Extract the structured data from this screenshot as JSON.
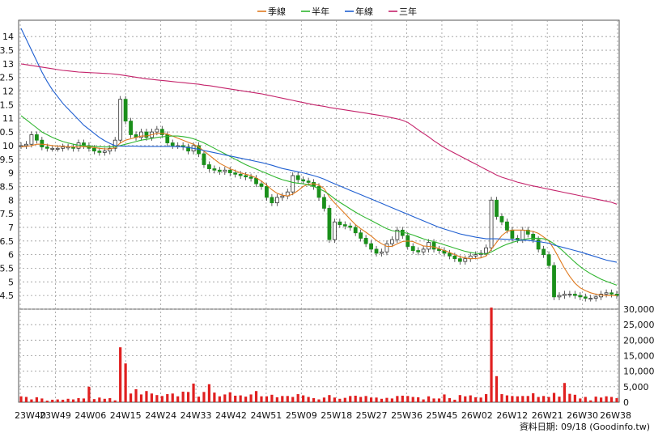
{
  "chart_data": {
    "type": "line",
    "source_note": "資料日期: 09/18 (Goodinfo.tw)",
    "legend": {
      "placement": "top-center",
      "items": [
        {
          "name": "季線",
          "color": "#e07a1f"
        },
        {
          "name": "半年",
          "color": "#2fb52f"
        },
        {
          "name": "年線",
          "color": "#1f5fd1"
        },
        {
          "name": "三年",
          "color": "#c4226a"
        }
      ]
    },
    "x_ticks": [
      "23W40",
      "23W49",
      "24W06",
      "24W15",
      "24W24",
      "24W33",
      "24W42",
      "24W51",
      "25W09",
      "25W18",
      "25W27",
      "25W36",
      "25W45",
      "26W02",
      "26W12",
      "26W21",
      "26W30",
      "26W38"
    ],
    "price_axis": {
      "ylim": [
        4.0,
        14.6
      ],
      "ticks": [
        4.5,
        5,
        5.5,
        6,
        6.5,
        7,
        7.5,
        8,
        8.5,
        9,
        9.5,
        10,
        10.5,
        11,
        11.5,
        12,
        12.5,
        13,
        13.5,
        14
      ],
      "tick_labels": [
        "4.5",
        "5",
        "5.5",
        "6",
        "6.5",
        "7",
        "7.5",
        "8",
        "8.5",
        "9",
        "9.5",
        "10",
        "10.5",
        "11",
        "11.5",
        "12",
        "12.5",
        "13",
        "13.5",
        "14"
      ]
    },
    "volume_axis": {
      "ylim": [
        0,
        30000
      ],
      "ticks": [
        0,
        5000,
        10000,
        15000,
        20000,
        25000,
        30000
      ],
      "tick_labels": [
        "0",
        "5,000",
        "10,000",
        "15,000",
        "20,000",
        "25,000",
        "30,000"
      ]
    },
    "grid": true,
    "close": [
      10.0,
      10.05,
      10.4,
      10.2,
      9.95,
      9.9,
      9.9,
      9.9,
      9.95,
      9.95,
      9.9,
      10.1,
      10.0,
      9.9,
      9.8,
      9.75,
      9.8,
      9.9,
      10.2,
      11.7,
      10.9,
      10.4,
      10.3,
      10.5,
      10.3,
      10.5,
      10.6,
      10.4,
      10.1,
      10.0,
      10.0,
      9.95,
      9.8,
      10.0,
      9.7,
      9.3,
      9.15,
      9.1,
      9.05,
      9.1,
      9.0,
      8.95,
      8.9,
      8.85,
      8.8,
      8.6,
      8.5,
      8.1,
      7.9,
      8.1,
      8.15,
      8.3,
      8.9,
      8.75,
      8.7,
      8.65,
      8.5,
      8.1,
      7.7,
      6.55,
      7.2,
      7.1,
      7.05,
      7.0,
      6.8,
      6.6,
      6.4,
      6.2,
      6.05,
      6.1,
      6.4,
      6.55,
      6.9,
      6.7,
      6.3,
      6.15,
      6.1,
      6.2,
      6.45,
      6.2,
      6.15,
      6.05,
      5.95,
      5.85,
      5.75,
      5.85,
      5.95,
      6.0,
      6.05,
      6.25,
      8.0,
      7.4,
      7.2,
      6.9,
      6.6,
      6.55,
      6.9,
      6.75,
      6.55,
      6.2,
      6.0,
      5.6,
      4.45,
      4.5,
      4.55,
      4.55,
      4.5,
      4.45,
      4.4,
      4.4,
      4.45,
      4.55,
      4.6,
      4.55,
      4.5
    ],
    "ma_quarter": [
      9.95,
      9.97,
      10.0,
      10.05,
      10.05,
      10.03,
      10.0,
      9.98,
      9.97,
      9.96,
      9.95,
      9.95,
      9.96,
      9.95,
      9.93,
      9.9,
      9.88,
      9.88,
      9.92,
      10.1,
      10.2,
      10.25,
      10.3,
      10.35,
      10.35,
      10.4,
      10.45,
      10.45,
      10.42,
      10.35,
      10.27,
      10.2,
      10.12,
      10.05,
      9.95,
      9.8,
      9.65,
      9.5,
      9.35,
      9.25,
      9.15,
      9.08,
      9.0,
      8.95,
      8.9,
      8.82,
      8.7,
      8.55,
      8.38,
      8.25,
      8.18,
      8.15,
      8.22,
      8.35,
      8.5,
      8.58,
      8.6,
      8.55,
      8.42,
      8.12,
      7.9,
      7.7,
      7.5,
      7.3,
      7.1,
      6.95,
      6.82,
      6.68,
      6.52,
      6.4,
      6.3,
      6.3,
      6.4,
      6.48,
      6.5,
      6.48,
      6.4,
      6.32,
      6.3,
      6.28,
      6.22,
      6.15,
      6.08,
      6.0,
      5.92,
      5.88,
      5.85,
      5.86,
      5.88,
      5.95,
      6.2,
      6.45,
      6.7,
      6.85,
      6.9,
      6.9,
      6.9,
      6.88,
      6.85,
      6.78,
      6.65,
      6.5,
      6.2,
      5.85,
      5.5,
      5.2,
      4.95,
      4.78,
      4.68,
      4.6,
      4.55,
      4.52,
      4.5,
      4.5,
      4.5
    ],
    "ma_halfyear": [
      11.1,
      10.95,
      10.8,
      10.65,
      10.5,
      10.4,
      10.3,
      10.22,
      10.15,
      10.1,
      10.05,
      10.02,
      10.0,
      9.98,
      9.97,
      9.96,
      9.95,
      9.95,
      9.96,
      10.0,
      10.05,
      10.1,
      10.15,
      10.2,
      10.23,
      10.26,
      10.3,
      10.32,
      10.34,
      10.35,
      10.35,
      10.33,
      10.3,
      10.25,
      10.18,
      10.1,
      10.0,
      9.9,
      9.8,
      9.7,
      9.6,
      9.5,
      9.4,
      9.3,
      9.22,
      9.14,
      9.06,
      8.98,
      8.9,
      8.82,
      8.75,
      8.7,
      8.65,
      8.62,
      8.6,
      8.56,
      8.5,
      8.42,
      8.33,
      8.2,
      8.05,
      7.92,
      7.8,
      7.68,
      7.56,
      7.45,
      7.35,
      7.25,
      7.15,
      7.05,
      6.95,
      6.88,
      6.85,
      6.82,
      6.78,
      6.72,
      6.65,
      6.58,
      6.52,
      6.48,
      6.42,
      6.36,
      6.3,
      6.24,
      6.18,
      6.12,
      6.08,
      6.05,
      6.03,
      6.02,
      6.1,
      6.2,
      6.3,
      6.38,
      6.45,
      6.5,
      6.55,
      6.58,
      6.6,
      6.6,
      6.58,
      6.52,
      6.4,
      6.25,
      6.08,
      5.9,
      5.72,
      5.56,
      5.42,
      5.3,
      5.2,
      5.1,
      5.02,
      4.95,
      4.88
    ],
    "ma_year": [
      14.3,
      13.9,
      13.5,
      13.1,
      12.7,
      12.35,
      12.05,
      11.8,
      11.55,
      11.35,
      11.15,
      10.95,
      10.75,
      10.6,
      10.45,
      10.3,
      10.18,
      10.08,
      10.0,
      9.98,
      9.98,
      9.98,
      9.98,
      9.97,
      9.97,
      9.97,
      9.97,
      9.97,
      9.97,
      9.97,
      9.96,
      9.95,
      9.93,
      9.9,
      9.86,
      9.82,
      9.78,
      9.74,
      9.7,
      9.66,
      9.62,
      9.58,
      9.54,
      9.5,
      9.46,
      9.42,
      9.38,
      9.33,
      9.28,
      9.22,
      9.16,
      9.12,
      9.08,
      9.04,
      9.0,
      8.95,
      8.9,
      8.84,
      8.77,
      8.68,
      8.6,
      8.52,
      8.44,
      8.36,
      8.28,
      8.2,
      8.12,
      8.04,
      7.96,
      7.88,
      7.8,
      7.72,
      7.64,
      7.56,
      7.48,
      7.4,
      7.32,
      7.24,
      7.16,
      7.08,
      7.0,
      6.94,
      6.88,
      6.82,
      6.76,
      6.72,
      6.68,
      6.64,
      6.61,
      6.58,
      6.58,
      6.58,
      6.57,
      6.56,
      6.55,
      6.54,
      6.53,
      6.52,
      6.5,
      6.48,
      6.45,
      6.42,
      6.35,
      6.3,
      6.25,
      6.2,
      6.15,
      6.1,
      6.04,
      5.98,
      5.92,
      5.86,
      5.8,
      5.76,
      5.72
    ],
    "ma_3year": [
      13.0,
      12.97,
      12.94,
      12.91,
      12.88,
      12.85,
      12.82,
      12.79,
      12.76,
      12.74,
      12.72,
      12.7,
      12.69,
      12.68,
      12.67,
      12.66,
      12.65,
      12.64,
      12.62,
      12.6,
      12.57,
      12.54,
      12.51,
      12.48,
      12.45,
      12.43,
      12.41,
      12.39,
      12.37,
      12.35,
      12.33,
      12.31,
      12.29,
      12.27,
      12.25,
      12.22,
      12.2,
      12.17,
      12.14,
      12.11,
      12.08,
      12.05,
      12.02,
      11.99,
      11.96,
      11.93,
      11.9,
      11.86,
      11.82,
      11.78,
      11.74,
      11.7,
      11.66,
      11.62,
      11.58,
      11.54,
      11.5,
      11.47,
      11.44,
      11.4,
      11.37,
      11.34,
      11.31,
      11.28,
      11.25,
      11.22,
      11.19,
      11.16,
      11.13,
      11.1,
      11.06,
      11.02,
      10.98,
      10.93,
      10.85,
      10.72,
      10.58,
      10.45,
      10.32,
      10.18,
      10.05,
      9.93,
      9.82,
      9.72,
      9.62,
      9.52,
      9.42,
      9.32,
      9.22,
      9.12,
      9.02,
      8.92,
      8.84,
      8.78,
      8.72,
      8.66,
      8.61,
      8.56,
      8.52,
      8.48,
      8.44,
      8.4,
      8.36,
      8.32,
      8.28,
      8.24,
      8.2,
      8.16,
      8.12,
      8.08,
      8.04,
      8.0,
      7.96,
      7.92,
      7.85
    ],
    "volume": [
      1900,
      1700,
      900,
      1600,
      1200,
      500,
      800,
      900,
      800,
      1100,
      900,
      1300,
      1200,
      5000,
      1000,
      1500,
      1100,
      1300,
      600,
      17700,
      12500,
      2800,
      4200,
      2500,
      3600,
      2800,
      2300,
      2000,
      2600,
      2800,
      1900,
      3400,
      3300,
      6000,
      1800,
      3300,
      5800,
      3100,
      1900,
      2500,
      3200,
      2100,
      2200,
      1800,
      2500,
      3600,
      1900,
      1900,
      2400,
      1600,
      2000,
      2000,
      1700,
      2600,
      2200,
      1700,
      1300,
      900,
      1500,
      2300,
      1500,
      1100,
      1400,
      2000,
      2100,
      1700,
      2000,
      1500,
      1500,
      1100,
      1400,
      1200,
      2000,
      2100,
      2000,
      1700,
      1600,
      900,
      1900,
      1200,
      1200,
      2500,
      1300,
      800,
      2300,
      1900,
      2200,
      1600,
      1500,
      2600,
      30500,
      8400,
      2600,
      2200,
      2000,
      1900,
      2000,
      2000,
      2900,
      1700,
      2000,
      1700,
      3000,
      1800,
      6200,
      2700,
      2400,
      1200,
      1700,
      600,
      1800,
      1500,
      1900,
      1700,
      1300
    ]
  }
}
